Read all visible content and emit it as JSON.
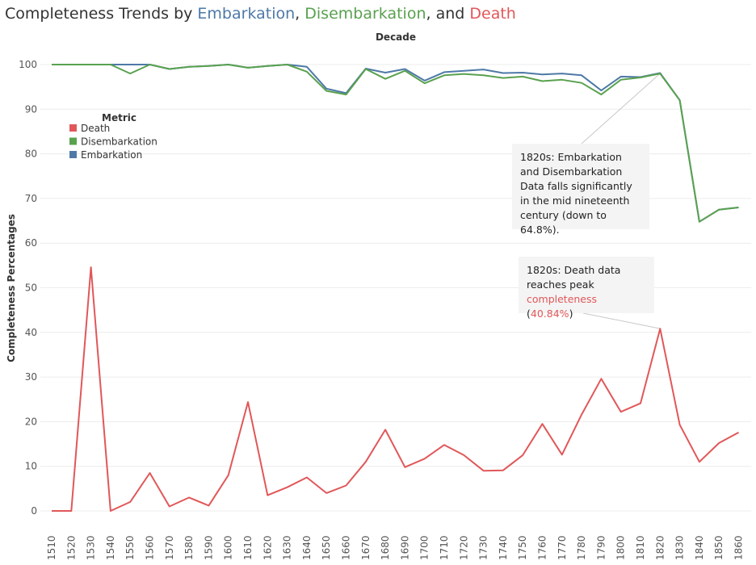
{
  "title": {
    "prefix": "Completeness Trends by ",
    "embarkation": "Embarkation",
    "sep1": ", ",
    "disembarkation": "Disembarkation",
    "sep2": ", and ",
    "death": "Death"
  },
  "chart_data": {
    "type": "line",
    "xlabel": "Decade",
    "ylabel": "Completeness Percentages",
    "ylim": [
      0,
      100
    ],
    "yticks": [
      0,
      10,
      20,
      30,
      40,
      50,
      60,
      70,
      80,
      90,
      100
    ],
    "grid": true,
    "categories": [
      "1510",
      "1520",
      "1530",
      "1540",
      "1550",
      "1560",
      "1570",
      "1580",
      "1590",
      "1600",
      "1610",
      "1620",
      "1630",
      "1640",
      "1650",
      "1660",
      "1670",
      "1680",
      "1690",
      "1700",
      "1710",
      "1720",
      "1730",
      "1740",
      "1750",
      "1760",
      "1770",
      "1780",
      "1790",
      "1800",
      "1810",
      "1820",
      "1830",
      "1840",
      "1850",
      "1860"
    ],
    "legend": {
      "title": "Metric",
      "position": "left",
      "items": [
        "Death",
        "Disembarkation",
        "Embarkation"
      ]
    },
    "series": [
      {
        "name": "Embarkation",
        "color": "#4e79a7",
        "values": [
          100,
          100,
          100,
          100,
          100,
          100,
          99,
          99.5,
          99.7,
          100,
          99.3,
          99.7,
          100,
          99.5,
          94.6,
          93.6,
          99.1,
          98.2,
          99,
          96.4,
          98.3,
          98.6,
          98.9,
          98.1,
          98.2,
          97.8,
          98,
          97.6,
          94.2,
          97.3,
          97.2,
          98.1,
          92.0,
          64.8,
          67.5,
          68
        ]
      },
      {
        "name": "Disembarkation",
        "color": "#59a14f",
        "values": [
          100,
          100,
          100,
          100,
          98,
          100,
          99,
          99.5,
          99.7,
          100,
          99.3,
          99.7,
          100,
          98.4,
          94.1,
          93.3,
          99,
          96.8,
          98.6,
          95.8,
          97.6,
          97.9,
          97.6,
          97.0,
          97.3,
          96.3,
          96.6,
          95.9,
          93.3,
          96.6,
          97.1,
          98,
          92.0,
          64.8,
          67.5,
          68
        ]
      },
      {
        "name": "Death",
        "color": "#e15759",
        "values": [
          0,
          0,
          54.6,
          0,
          2,
          8.5,
          1,
          3,
          1.2,
          8,
          24.4,
          3.5,
          5.3,
          7.5,
          4,
          5.7,
          11,
          18.2,
          9.8,
          11.7,
          14.8,
          12.5,
          9,
          9.1,
          12.5,
          19.5,
          12.6,
          21.6,
          29.6,
          22.2,
          24.1,
          40.84,
          19.3,
          11,
          15.2,
          17.6
        ]
      }
    ],
    "annotations": [
      {
        "decade": "1820",
        "series": "Disembarkation",
        "text": "1820s: Embarkation and Disembarkation Data falls significantly in the mid nineteenth century (down to 64.8%)."
      },
      {
        "decade": "1820",
        "series": "Death",
        "text_before": "1820s: Death data reaches peak",
        "text_highlight": "completeness",
        "text_after": " (",
        "text_value": "40.84%",
        "text_end": ")"
      }
    ]
  }
}
